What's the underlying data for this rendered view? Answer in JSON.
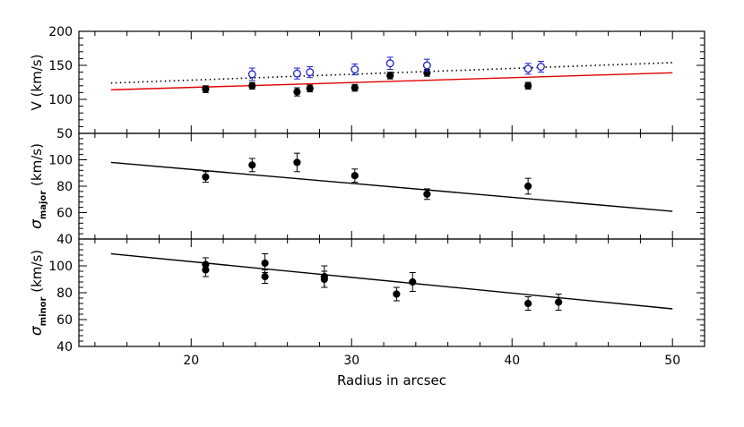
{
  "chart_data": {
    "type": "scatter",
    "xlabel": "Radius in arcsec",
    "xlim": [
      13,
      52
    ],
    "x_ticks": [
      20,
      30,
      40,
      50
    ],
    "panels": [
      {
        "id": "velocity",
        "ylabel": "V (km/s)",
        "ylim": [
          50,
          200
        ],
        "y_ticks": [
          50,
          100,
          150,
          200
        ],
        "series": [
          {
            "marker": "filled-circle",
            "color": "#000000",
            "points": [
              {
                "x": 20.9,
                "y": 115,
                "err": 5
              },
              {
                "x": 23.8,
                "y": 120,
                "err": 5
              },
              {
                "x": 26.6,
                "y": 111,
                "err": 6
              },
              {
                "x": 27.4,
                "y": 116,
                "err": 5
              },
              {
                "x": 30.2,
                "y": 117,
                "err": 5
              },
              {
                "x": 32.4,
                "y": 135,
                "err": 5
              },
              {
                "x": 34.7,
                "y": 139,
                "err": 5
              },
              {
                "x": 41.0,
                "y": 120,
                "err": 5
              }
            ]
          },
          {
            "marker": "open-circle",
            "color": "#2222cc",
            "points": [
              {
                "x": 23.8,
                "y": 137,
                "err": 9
              },
              {
                "x": 26.6,
                "y": 138,
                "err": 8
              },
              {
                "x": 27.4,
                "y": 140,
                "err": 8
              },
              {
                "x": 30.2,
                "y": 144,
                "err": 8
              },
              {
                "x": 32.4,
                "y": 153,
                "err": 9
              },
              {
                "x": 34.7,
                "y": 150,
                "err": 9
              },
              {
                "x": 41.0,
                "y": 145,
                "err": 8
              },
              {
                "x": 41.8,
                "y": 148,
                "err": 8
              }
            ]
          }
        ],
        "lines": [
          {
            "style": "dotted",
            "color": "#000000",
            "x": [
              15,
              50
            ],
            "y": [
              124,
              154
            ]
          },
          {
            "style": "solid",
            "color": "#e00000",
            "x": [
              15,
              50
            ],
            "y": [
              114,
              139
            ]
          }
        ]
      },
      {
        "id": "sigma-major",
        "ylabel": "σ",
        "ylabel_sub": "major",
        "ylabel_unit": "(km/s)",
        "ylim": [
          40,
          120
        ],
        "y_ticks": [
          40,
          60,
          80,
          100
        ],
        "series": [
          {
            "marker": "filled-circle",
            "color": "#000000",
            "points": [
              {
                "x": 20.9,
                "y": 87,
                "err": 4
              },
              {
                "x": 23.8,
                "y": 96,
                "err": 5
              },
              {
                "x": 26.6,
                "y": 98,
                "err": 7
              },
              {
                "x": 30.2,
                "y": 88,
                "err": 5
              },
              {
                "x": 34.7,
                "y": 74,
                "err": 4
              },
              {
                "x": 41.0,
                "y": 80,
                "err": 6
              }
            ]
          }
        ],
        "lines": [
          {
            "style": "solid",
            "color": "#000000",
            "x": [
              15,
              50
            ],
            "y": [
              98,
              61
            ]
          }
        ]
      },
      {
        "id": "sigma-minor",
        "ylabel": "σ",
        "ylabel_sub": "minor",
        "ylabel_unit": "(km/s)",
        "ylim": [
          40,
          120
        ],
        "y_ticks": [
          40,
          60,
          80,
          100
        ],
        "series": [
          {
            "marker": "filled-circle",
            "color": "#000000",
            "points": [
              {
                "x": 20.9,
                "y": 101,
                "err": 5
              },
              {
                "x": 20.9,
                "y": 97,
                "err": 5
              },
              {
                "x": 24.6,
                "y": 102,
                "err": 7
              },
              {
                "x": 24.6,
                "y": 92,
                "err": 5
              },
              {
                "x": 28.3,
                "y": 92,
                "err": 8
              },
              {
                "x": 28.3,
                "y": 90,
                "err": 6
              },
              {
                "x": 32.8,
                "y": 79,
                "err": 5
              },
              {
                "x": 33.8,
                "y": 88,
                "err": 7
              },
              {
                "x": 41.0,
                "y": 72,
                "err": 5
              },
              {
                "x": 42.9,
                "y": 73,
                "err": 6
              }
            ]
          }
        ],
        "lines": [
          {
            "style": "solid",
            "color": "#000000",
            "x": [
              15,
              50
            ],
            "y": [
              109,
              68
            ]
          }
        ]
      }
    ]
  }
}
